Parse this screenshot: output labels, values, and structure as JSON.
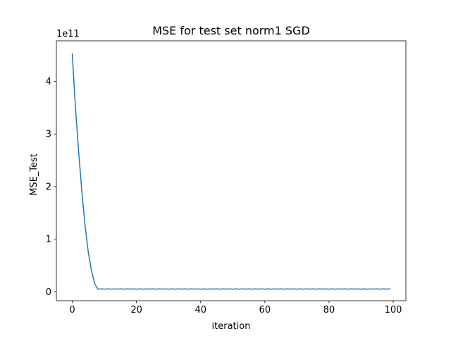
{
  "chart_data": {
    "type": "line",
    "title": "MSE for test set norm1 SGD",
    "xlabel": "iteration",
    "ylabel": "MSE_Test",
    "y_offset_label": "1e11",
    "y_scale_factor": 100000000000,
    "xlim": [
      -4.95,
      103.95
    ],
    "ylim": [
      -0.17,
      4.77
    ],
    "xticks": [
      0,
      20,
      40,
      60,
      80,
      100
    ],
    "yticks": [
      0,
      1,
      2,
      3,
      4
    ],
    "grid": false,
    "line_color": "#1f77b4",
    "series": [
      {
        "x": [
          0,
          1,
          2,
          3,
          4,
          5,
          6,
          7,
          8,
          9,
          10,
          11,
          12,
          13,
          14,
          15,
          16,
          17,
          18,
          19,
          20,
          21,
          22,
          23,
          24,
          25,
          26,
          27,
          28,
          29,
          30,
          31,
          32,
          33,
          34,
          35,
          36,
          37,
          38,
          39,
          40,
          41,
          42,
          43,
          44,
          45,
          46,
          47,
          48,
          49,
          50,
          51,
          52,
          53,
          54,
          55,
          56,
          57,
          58,
          59,
          60,
          61,
          62,
          63,
          64,
          65,
          66,
          67,
          68,
          69,
          70,
          71,
          72,
          73,
          74,
          75,
          76,
          77,
          78,
          79,
          80,
          81,
          82,
          83,
          84,
          85,
          86,
          87,
          88,
          89,
          90,
          91,
          92,
          93,
          94,
          95,
          96,
          97,
          98,
          99
        ],
        "y": [
          4.52,
          3.5,
          2.65,
          1.9,
          1.25,
          0.75,
          0.4,
          0.15,
          0.05,
          0.055,
          0.05,
          0.055,
          0.05,
          0.055,
          0.05,
          0.055,
          0.05,
          0.055,
          0.05,
          0.055,
          0.05,
          0.055,
          0.05,
          0.055,
          0.05,
          0.055,
          0.05,
          0.055,
          0.05,
          0.055,
          0.05,
          0.055,
          0.05,
          0.055,
          0.05,
          0.055,
          0.05,
          0.055,
          0.05,
          0.055,
          0.05,
          0.055,
          0.05,
          0.055,
          0.05,
          0.055,
          0.05,
          0.055,
          0.05,
          0.055,
          0.05,
          0.055,
          0.05,
          0.055,
          0.05,
          0.055,
          0.05,
          0.055,
          0.05,
          0.055,
          0.05,
          0.055,
          0.05,
          0.055,
          0.05,
          0.055,
          0.05,
          0.055,
          0.05,
          0.055,
          0.05,
          0.055,
          0.05,
          0.055,
          0.05,
          0.055,
          0.05,
          0.055,
          0.05,
          0.055,
          0.05,
          0.055,
          0.05,
          0.055,
          0.05,
          0.055,
          0.05,
          0.055,
          0.05,
          0.055,
          0.05,
          0.055,
          0.05,
          0.055,
          0.05,
          0.055,
          0.05,
          0.055,
          0.05,
          0.055
        ]
      }
    ]
  }
}
